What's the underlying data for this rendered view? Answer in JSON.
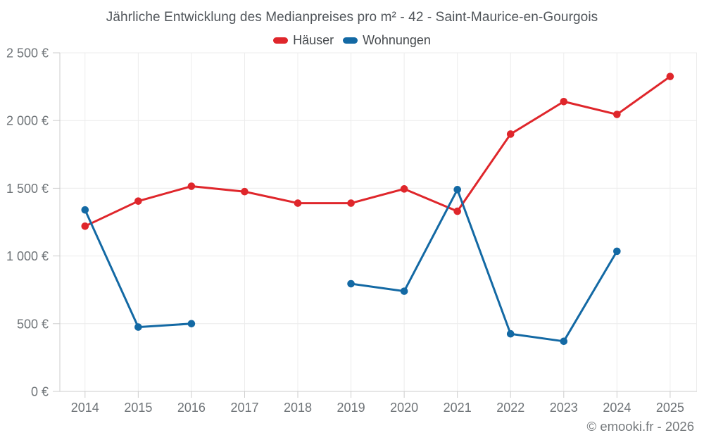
{
  "page": {
    "background": "#ffffff"
  },
  "header": {
    "title": "Jährliche Entwicklung des Medianpreises pro m² - 42 - Saint-Maurice-en-Gourgois"
  },
  "legend": {
    "items": [
      {
        "label": "Häuser",
        "color": "#df262b"
      },
      {
        "label": "Wohnungen",
        "color": "#1369a4"
      }
    ]
  },
  "footer": {
    "copyright": "© emooki.fr - 2026"
  },
  "chart_data": {
    "type": "line",
    "title": "Jährliche Entwicklung des Medianpreises pro m² - 42 - Saint-Maurice-en-Gourgois",
    "categories": [
      "2014",
      "2015",
      "2016",
      "2017",
      "2018",
      "2019",
      "2020",
      "2021",
      "2022",
      "2023",
      "2024",
      "2025"
    ],
    "series": [
      {
        "name": "Häuser",
        "color": "#df262b",
        "values": [
          1220,
          1405,
          1515,
          1475,
          1390,
          1390,
          1495,
          1330,
          1900,
          2140,
          2045,
          2325
        ]
      },
      {
        "name": "Wohnungen",
        "color": "#1369a4",
        "values": [
          1340,
          475,
          500,
          null,
          null,
          795,
          740,
          1490,
          425,
          370,
          1035,
          null
        ]
      }
    ],
    "ylim": [
      0,
      2500
    ],
    "y_ticks": [
      {
        "value": 0,
        "label": "0 €"
      },
      {
        "value": 500,
        "label": "500 €"
      },
      {
        "value": 1000,
        "label": "1 000 €"
      },
      {
        "value": 1500,
        "label": "1 500 €"
      },
      {
        "value": 2000,
        "label": "2 000 €"
      },
      {
        "value": 2500,
        "label": "2 500 €"
      }
    ],
    "xlabel": "",
    "ylabel": "",
    "unit": "€ / m²",
    "grid": true,
    "legend_position": "top",
    "styles": {
      "grid_color": "#ececec",
      "axis_color": "#cccccc",
      "tick_label_color": "#6f7478"
    }
  }
}
